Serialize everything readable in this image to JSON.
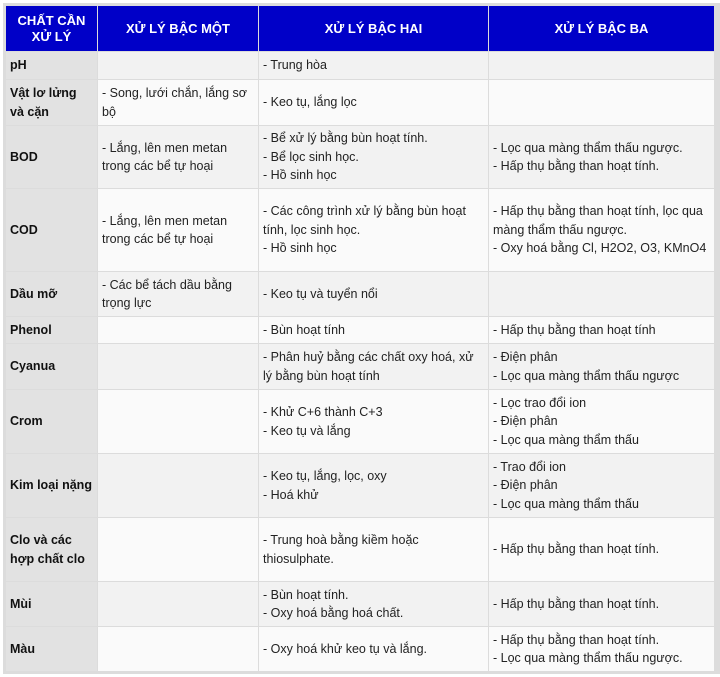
{
  "headers": [
    "CHẤT CẦN XỬ LÝ",
    "XỬ LÝ BẬC MỘT",
    "XỬ LÝ BẬC HAI",
    "XỬ LÝ BẬC BA"
  ],
  "rows": [
    {
      "name": "pH",
      "c1": [],
      "c2": [
        "- Trung hòa"
      ],
      "c3": [],
      "h": 28
    },
    {
      "name": "Vật lơ lửng và cặn",
      "c1": [
        "- Song, lưới chắn, lắng sơ bộ"
      ],
      "c2": [
        "- Keo tụ, lắng lọc"
      ],
      "c3": [],
      "h": 46
    },
    {
      "name": "BOD",
      "c1": [
        "- Lắng, lên men metan trong các bể tự hoại"
      ],
      "c2": [
        "- Bể xử lý bằng bùn hoạt tính.",
        "- Bể lọc sinh học.",
        "- Hồ sinh học"
      ],
      "c3": [
        "- Lọc qua màng thẩm thấu ngược.",
        "- Hấp thụ bằng than hoạt tính."
      ],
      "h": 63
    },
    {
      "name": "COD",
      "c1": [
        "- Lắng, lên men metan trong các bể tự hoại"
      ],
      "c2": [
        "- Các công trình xử lý bằng bùn hoạt tính, lọc sinh học.",
        "- Hồ sinh học"
      ],
      "c3": [
        "- Hấp thụ bằng than hoạt tính, lọc qua màng thẩm thấu ngược.",
        "- Oxy hoá bằng Cl, H2O2, O3, KMnO4"
      ],
      "h": 83
    },
    {
      "name": "Dầu mỡ",
      "c1": [
        "- Các bể tách dầu bằng trọng lực"
      ],
      "c2": [
        "- Keo tụ và tuyển nổi"
      ],
      "c3": [],
      "h": 45
    },
    {
      "name": "Phenol",
      "c1": [],
      "c2": [
        "- Bùn hoạt tính"
      ],
      "c3": [
        "- Hấp thụ bằng than hoạt tính"
      ],
      "h": 27
    },
    {
      "name": "Cyanua",
      "c1": [],
      "c2": [
        "- Phân huỷ bằng các chất oxy hoá, xử lý bằng bùn hoạt tính"
      ],
      "c3": [
        "- Điện phân",
        "- Lọc qua màng thẩm thấu ngược"
      ],
      "h": 46
    },
    {
      "name": "Crom",
      "c1": [],
      "c2": [
        "- Khử C+6 thành C+3",
        "- Keo tụ và lắng"
      ],
      "c3": [
        "- Lọc trao đổi ion",
        "- Điện phân",
        "- Lọc qua màng thẩm thấu"
      ],
      "h": 64
    },
    {
      "name": "Kim loại nặng",
      "c1": [],
      "c2": [
        "- Keo tụ, lắng, lọc, oxy",
        "- Hoá khử"
      ],
      "c3": [
        "- Trao đổi ion",
        "- Điện phân",
        "- Lọc qua màng thẩm thấu"
      ],
      "h": 64
    },
    {
      "name": "Clo và các hợp chất clo",
      "c1": [],
      "c2": [
        "- Trung hoà bằng kiềm hoặc thiosulphate."
      ],
      "c3": [
        "- Hấp thụ bằng than hoạt tính."
      ],
      "h": 64
    },
    {
      "name": "Mùi",
      "c1": [],
      "c2": [
        "- Bùn hoạt tính.",
        "- Oxy hoá bằng hoá chất."
      ],
      "c3": [
        "- Hấp thụ bằng than hoạt tính."
      ],
      "h": 45
    },
    {
      "name": "Màu",
      "c1": [],
      "c2": [
        "- Oxy hoá khử keo tụ và lắng."
      ],
      "c3": [
        "- Hấp thụ bằng than hoạt tính.",
        "- Lọc qua màng thẩm thấu ngược."
      ],
      "h": 45
    }
  ],
  "colors": {
    "header_bg": "#0000c8",
    "first_col_bg": "#e2e2e2"
  }
}
